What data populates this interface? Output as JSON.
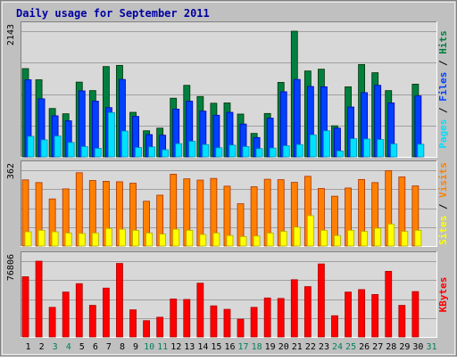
{
  "title": "Daily usage for September 2011",
  "colors": {
    "background": "#C0C0C0",
    "plot": "#D8D8D8",
    "title": "#0000A0",
    "hits": "#008040",
    "files": "#0040FF",
    "pages": "#00E0FF",
    "visits": "#FF8000",
    "sites": "#FFFF00",
    "kbytes": "#FF0000",
    "weekend_label": "#00805C",
    "weekday_label": "#000000"
  },
  "chart_data": [
    {
      "type": "bar",
      "name": "hits-files-pages",
      "categories": [
        "1",
        "2",
        "3",
        "4",
        "5",
        "6",
        "7",
        "8",
        "9",
        "10",
        "11",
        "12",
        "13",
        "14",
        "15",
        "16",
        "17",
        "18",
        "19",
        "20",
        "21",
        "22",
        "23",
        "24",
        "25",
        "26",
        "27",
        "28",
        "29",
        "30",
        "31"
      ],
      "weekend_days": [
        "3",
        "4",
        "10",
        "11",
        "17",
        "18",
        "24",
        "25",
        "31"
      ],
      "ymax": 2143,
      "ymax_label": "2143",
      "legend": [
        "Pages",
        "Files",
        "Hits"
      ],
      "series": [
        {
          "name": "Hits",
          "color": "#008040",
          "values": [
            1505,
            1315,
            825,
            735,
            1275,
            1130,
            1540,
            1560,
            760,
            445,
            490,
            1000,
            1220,
            1030,
            915,
            920,
            730,
            400,
            740,
            1270,
            2143,
            1465,
            1495,
            530,
            1195,
            1575,
            1435,
            1130,
            0,
            1240,
            0
          ]
        },
        {
          "name": "Files",
          "color": "#0040FF",
          "values": [
            1315,
            990,
            700,
            615,
            1125,
            950,
            840,
            1320,
            690,
            380,
            370,
            815,
            950,
            780,
            710,
            760,
            560,
            330,
            660,
            1110,
            1320,
            1200,
            1195,
            490,
            850,
            1095,
            1220,
            920,
            0,
            1040,
            0
          ]
        },
        {
          "name": "Pages",
          "color": "#00E0FF",
          "values": [
            350,
            290,
            355,
            245,
            175,
            145,
            755,
            440,
            160,
            170,
            120,
            225,
            265,
            210,
            155,
            200,
            175,
            140,
            150,
            190,
            210,
            375,
            445,
            100,
            310,
            305,
            295,
            220,
            0,
            215,
            0
          ]
        }
      ]
    },
    {
      "type": "bar",
      "name": "visits-sites",
      "categories": [
        "1",
        "2",
        "3",
        "4",
        "5",
        "6",
        "7",
        "8",
        "9",
        "10",
        "11",
        "12",
        "13",
        "14",
        "15",
        "16",
        "17",
        "18",
        "19",
        "20",
        "21",
        "22",
        "23",
        "24",
        "25",
        "26",
        "27",
        "28",
        "29",
        "30",
        "31"
      ],
      "ymax": 362,
      "ymax_label": "362",
      "legend": [
        "Sites",
        "Visits"
      ],
      "series": [
        {
          "name": "Visits",
          "color": "#FF8000",
          "values": [
            316,
            303,
            225,
            273,
            350,
            313,
            309,
            307,
            300,
            214,
            243,
            343,
            321,
            315,
            323,
            286,
            202,
            283,
            319,
            317,
            304,
            333,
            275,
            238,
            277,
            318,
            303,
            360,
            330,
            287,
            0
          ]
        },
        {
          "name": "Sites",
          "color": "#FFFF00",
          "values": [
            68,
            75,
            68,
            62,
            60,
            62,
            84,
            80,
            75,
            62,
            57,
            80,
            75,
            55,
            62,
            50,
            45,
            48,
            62,
            70,
            90,
            145,
            75,
            50,
            75,
            70,
            85,
            105,
            70,
            75,
            0
          ]
        }
      ]
    },
    {
      "type": "bar",
      "name": "kbytes",
      "categories": [
        "1",
        "2",
        "3",
        "4",
        "5",
        "6",
        "7",
        "8",
        "9",
        "10",
        "11",
        "12",
        "13",
        "14",
        "15",
        "16",
        "17",
        "18",
        "19",
        "20",
        "21",
        "22",
        "23",
        "24",
        "25",
        "26",
        "27",
        "28",
        "29",
        "30",
        "31"
      ],
      "ymax": 76806,
      "ymax_label": "76806",
      "legend": [
        "KBytes"
      ],
      "series": [
        {
          "name": "KBytes",
          "color": "#FF0000",
          "values": [
            61000,
            76806,
            30000,
            45500,
            54000,
            32000,
            49500,
            74500,
            27500,
            16500,
            20000,
            38500,
            38000,
            54500,
            31500,
            28000,
            18000,
            30000,
            39500,
            39000,
            58000,
            51000,
            74000,
            21500,
            45500,
            48000,
            43000,
            66500,
            32000,
            46000,
            0
          ]
        }
      ]
    }
  ]
}
